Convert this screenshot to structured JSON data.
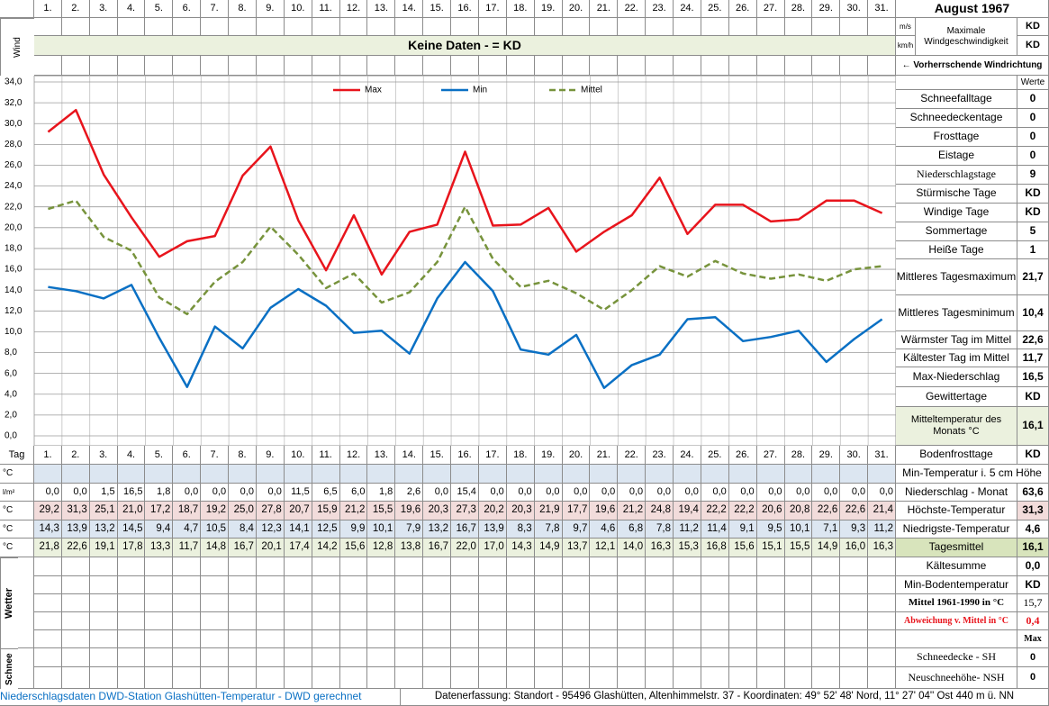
{
  "header": {
    "month": "August 1967",
    "wind_label": "Wind",
    "no_data": "Keine Daten -  = KD",
    "wind_units": [
      "m/s",
      "km/h"
    ],
    "wind_speed_label": "Maximale Windgeschwindigkeit",
    "wind_speed_values": [
      "KD",
      "KD"
    ],
    "wind_direction": "← Vorherrschende Windrichtung",
    "values_header": "Werte"
  },
  "chart_data": {
    "type": "line",
    "categories": [
      "1.",
      "2.",
      "3.",
      "4.",
      "5.",
      "6.",
      "7.",
      "8.",
      "9.",
      "10.",
      "11.",
      "12.",
      "13.",
      "14.",
      "15.",
      "16.",
      "17.",
      "18.",
      "19.",
      "20.",
      "21.",
      "22.",
      "23.",
      "24.",
      "25.",
      "26.",
      "27.",
      "28.",
      "29.",
      "30.",
      "31."
    ],
    "series": [
      {
        "name": "Max",
        "color": "#e8141c",
        "style": "solid",
        "values": [
          29.2,
          31.3,
          25.1,
          21.0,
          17.2,
          18.7,
          19.2,
          25.0,
          27.8,
          20.7,
          15.9,
          21.2,
          15.5,
          19.6,
          20.3,
          27.3,
          20.2,
          20.3,
          21.9,
          17.7,
          19.6,
          21.2,
          24.8,
          19.4,
          22.2,
          22.2,
          20.6,
          20.8,
          22.6,
          22.6,
          21.4
        ],
        "value_labels": [
          "29,2",
          "31,3",
          "25,1",
          "21,0",
          "17,2",
          "18,7",
          "19,2",
          "25,0",
          "27,8",
          "20,7",
          "15,9",
          "21,2",
          "15,5",
          "19,6",
          "20,3",
          "27,3",
          "20,2",
          "20,3",
          "21,9",
          "17,7",
          "19,6",
          "21,2",
          "24,8",
          "19,4",
          "22,2",
          "22,2",
          "20,6",
          "20,8",
          "22,6",
          "22,6",
          "21,4"
        ]
      },
      {
        "name": "Min",
        "color": "#0a70c4",
        "style": "solid",
        "values": [
          14.3,
          13.9,
          13.2,
          14.5,
          9.4,
          4.7,
          10.5,
          8.4,
          12.3,
          14.1,
          12.5,
          9.9,
          10.1,
          7.9,
          13.2,
          16.7,
          13.9,
          8.3,
          7.8,
          9.7,
          4.6,
          6.8,
          7.8,
          11.2,
          11.4,
          9.1,
          9.5,
          10.1,
          7.1,
          9.3,
          11.2
        ],
        "value_labels": [
          "14,3",
          "13,9",
          "13,2",
          "14,5",
          "9,4",
          "4,7",
          "10,5",
          "8,4",
          "12,3",
          "14,1",
          "12,5",
          "9,9",
          "10,1",
          "7,9",
          "13,2",
          "16,7",
          "13,9",
          "8,3",
          "7,8",
          "9,7",
          "4,6",
          "6,8",
          "7,8",
          "11,2",
          "11,4",
          "9,1",
          "9,5",
          "10,1",
          "7,1",
          "9,3",
          "11,2"
        ]
      },
      {
        "name": "Mittel",
        "color": "#77933c",
        "style": "dashed",
        "values": [
          21.8,
          22.6,
          19.1,
          17.8,
          13.3,
          11.7,
          14.8,
          16.7,
          20.1,
          17.4,
          14.2,
          15.6,
          12.8,
          13.8,
          16.7,
          22.0,
          17.0,
          14.3,
          14.9,
          13.7,
          12.1,
          14.0,
          16.3,
          15.3,
          16.8,
          15.6,
          15.1,
          15.5,
          14.9,
          16.0,
          16.3
        ],
        "value_labels": [
          "21,8",
          "22,6",
          "19,1",
          "17,8",
          "13,3",
          "11,7",
          "14,8",
          "16,7",
          "20,1",
          "17,4",
          "14,2",
          "15,6",
          "12,8",
          "13,8",
          "16,7",
          "22,0",
          "17,0",
          "14,3",
          "14,9",
          "13,7",
          "12,1",
          "14,0",
          "16,3",
          "15,3",
          "16,8",
          "15,6",
          "15,1",
          "15,5",
          "14,9",
          "16,0",
          "16,3"
        ]
      }
    ],
    "ylim": [
      0,
      34
    ],
    "yticks": [
      {
        "value": 0,
        "label": "0,0"
      },
      {
        "value": 2,
        "label": "2,0"
      },
      {
        "value": 4,
        "label": "4,0"
      },
      {
        "value": 6,
        "label": "6,0"
      },
      {
        "value": 8,
        "label": "8,0"
      },
      {
        "value": 10,
        "label": "10,0"
      },
      {
        "value": 12,
        "label": "12,0"
      },
      {
        "value": 14,
        "label": "14,0"
      },
      {
        "value": 16,
        "label": "16,0"
      },
      {
        "value": 18,
        "label": "18,0"
      },
      {
        "value": 20,
        "label": "20,0"
      },
      {
        "value": 22,
        "label": "22,0"
      },
      {
        "value": 24,
        "label": "24,0"
      },
      {
        "value": 26,
        "label": "26,0"
      },
      {
        "value": 28,
        "label": "28,0"
      },
      {
        "value": 30,
        "label": "30,0"
      },
      {
        "value": 32,
        "label": "32,0"
      },
      {
        "value": 34,
        "label": "34,0"
      }
    ],
    "grid": true
  },
  "table": {
    "day_label": "Tag",
    "units": [
      "°C",
      "l/m²",
      "°C",
      "°C",
      "°C"
    ],
    "precipitation": [
      "0,0",
      "0,0",
      "1,5",
      "16,5",
      "1,8",
      "0,0",
      "0,0",
      "0,0",
      "0,0",
      "11,5",
      "6,5",
      "6,0",
      "1,8",
      "2,6",
      "0,0",
      "15,4",
      "0,0",
      "0,0",
      "0,0",
      "0,0",
      "0,0",
      "0,0",
      "0,0",
      "0,0",
      "0,0",
      "0,0",
      "0,0",
      "0,0",
      "0,0",
      "0,0",
      "0,0"
    ],
    "side_labels": [
      "Wetter",
      "Schnee"
    ]
  },
  "stats": {
    "rows": [
      {
        "label": "Schneefalltage",
        "value": "0"
      },
      {
        "label": "Schneedeckentage",
        "value": "0"
      },
      {
        "label": "Frosttage",
        "value": "0"
      },
      {
        "label": "Eistage",
        "value": "0"
      },
      {
        "label": "Niederschlagstage",
        "value": "9"
      },
      {
        "label": "Stürmische Tage",
        "value": "KD"
      },
      {
        "label": "Windige Tage",
        "value": "KD"
      },
      {
        "label": "Sommertage",
        "value": "5"
      },
      {
        "label": "Heiße Tage",
        "value": "1"
      },
      {
        "label": "Mittleres Tagesmaximum",
        "value": "21,7"
      },
      {
        "label": "Mittleres Tagesminimum",
        "value": "10,4"
      },
      {
        "label": "Wärmster Tag im Mittel",
        "value": "22,6"
      },
      {
        "label": "Kältester Tag im Mittel",
        "value": "11,7"
      },
      {
        "label": "Max-Niederschlag",
        "value": "16,5"
      },
      {
        "label": "Gewittertage",
        "value": "KD"
      },
      {
        "label": "Mitteltemperatur des Monats °C",
        "value": "16,1"
      },
      {
        "label": "Bodenfrosttage",
        "value": "KD"
      },
      {
        "label": "Min-Temperatur i. 5 cm Höhe"
      },
      {
        "label": "Niederschlag - Monat",
        "value": "63,6"
      },
      {
        "label": "Höchste-Temperatur",
        "value": "31,3"
      },
      {
        "label": "Niedrigste-Temperatur",
        "value": "4,6"
      },
      {
        "label": "Tagesmittel",
        "value": "16,1"
      },
      {
        "label": "Kältesumme",
        "value": "0,0"
      },
      {
        "label": "Min-Bodentemperatur",
        "value": "KD"
      },
      {
        "label": "Mittel 1961-1990 in °C",
        "value": "15,7"
      },
      {
        "label": "Abweichung v. Mittel in °C",
        "value": "0,4"
      }
    ],
    "max_header": "Max",
    "snow": [
      {
        "label": "Schneedecke -  SH",
        "value": "0"
      },
      {
        "label": "Neuschneehöhe- NSH",
        "value": "0"
      }
    ]
  },
  "footer": {
    "left": "Niederschlagsdaten DWD-Station Glashütten-Temperatur -  DWD gerechnet",
    "right": "Datenerfassung: Standort -  95496 Glashütten, Altenhimmelstr. 37 - Koordinaten: 49° 52' 48' Nord,  11° 27' 04'' Ost  440 m ü. NN"
  }
}
